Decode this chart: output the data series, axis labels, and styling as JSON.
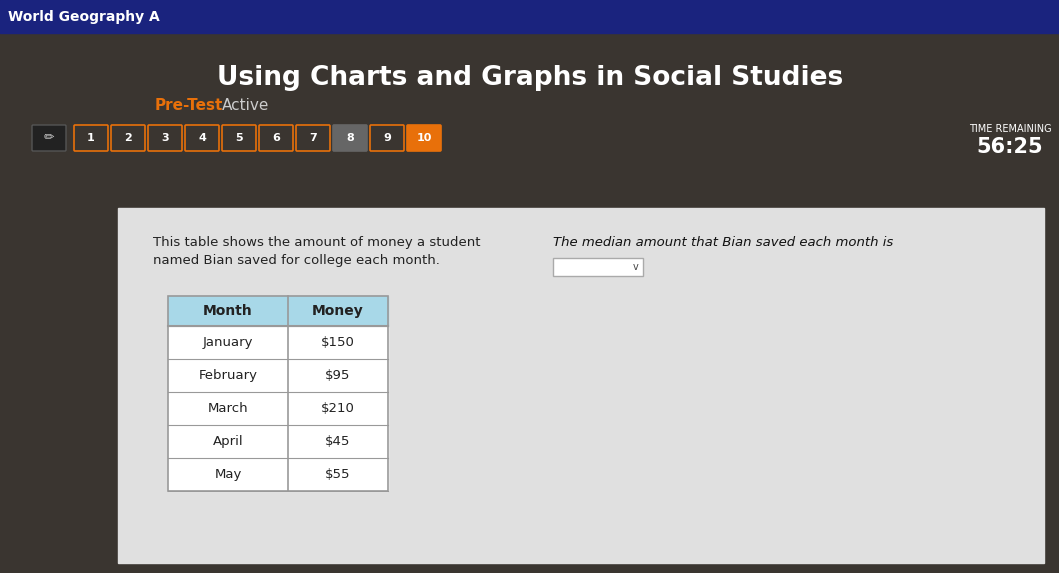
{
  "title": "Using Charts and Graphs in Social Studies",
  "subtitle_pretest": "Pre-Test",
  "subtitle_active": "Active",
  "top_bar_color": "#1a237e",
  "top_bar_label": "World Geography A",
  "top_bar_text_color": "#ffffff",
  "background_dark": "#3a3530",
  "background_light": "#e8e8e8",
  "content_bg": "#e0e0e0",
  "nav_numbers": [
    "1",
    "2",
    "3",
    "4",
    "5",
    "6",
    "7",
    "8",
    "9",
    "10"
  ],
  "nav_active": "10",
  "nav_active_color": "#e8700a",
  "nav_inactive_color": "#3a3530",
  "nav_border_color": "#e8700a",
  "nav_text_color": "#ffffff",
  "nav_8_color": "#666666",
  "nav_8_border": "#666666",
  "time_remaining_label": "TIME REMAINING",
  "time_remaining_value": "56:25",
  "time_text_color": "#ffffff",
  "description_text1": "This table shows the amount of money a student",
  "description_text2": "named Bian saved for college each month.",
  "question_text": "The median amount that Bian saved each month is",
  "table_header_bg": "#a8d8e8",
  "table_header_text": [
    "Month",
    "Money"
  ],
  "table_rows": [
    [
      "January",
      "$150"
    ],
    [
      "February",
      "$95"
    ],
    [
      "March",
      "$210"
    ],
    [
      "April",
      "$45"
    ],
    [
      "May",
      "$55"
    ]
  ],
  "table_row_bg": "#ffffff",
  "table_border_color": "#999999",
  "dropdown_border_color": "#aaaaaa",
  "title_color": "#ffffff",
  "pretest_color": "#e8700a",
  "active_color": "#cccccc",
  "pencil_bg": "#222222"
}
